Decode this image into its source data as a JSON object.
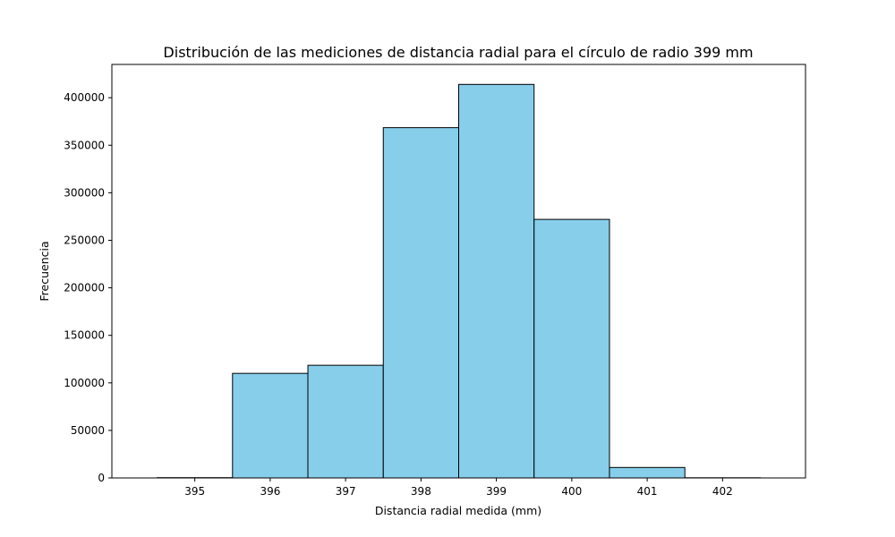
{
  "chart_data": {
    "type": "bar",
    "title": "Distribución de las mediciones de distancia radial para el círculo de radio 399 mm",
    "xlabel": "Distancia radial medida (mm)",
    "ylabel": "Frecuencia",
    "bin_edges": [
      394.5,
      395.5,
      396.5,
      397.5,
      398.5,
      399.5,
      400.5,
      401.5,
      402.5
    ],
    "values": [
      300,
      110000,
      118500,
      368500,
      414000,
      272000,
      11000,
      200
    ],
    "xlim": [
      393.9,
      403.1
    ],
    "ylim": [
      0,
      435000
    ],
    "xticks": [
      395,
      396,
      397,
      398,
      399,
      400,
      401,
      402
    ],
    "yticks": [
      0,
      50000,
      100000,
      150000,
      200000,
      250000,
      300000,
      350000,
      400000
    ],
    "bar_color": "#87ceeb",
    "edge_color": "#000000",
    "grid": false,
    "legend": "none"
  }
}
